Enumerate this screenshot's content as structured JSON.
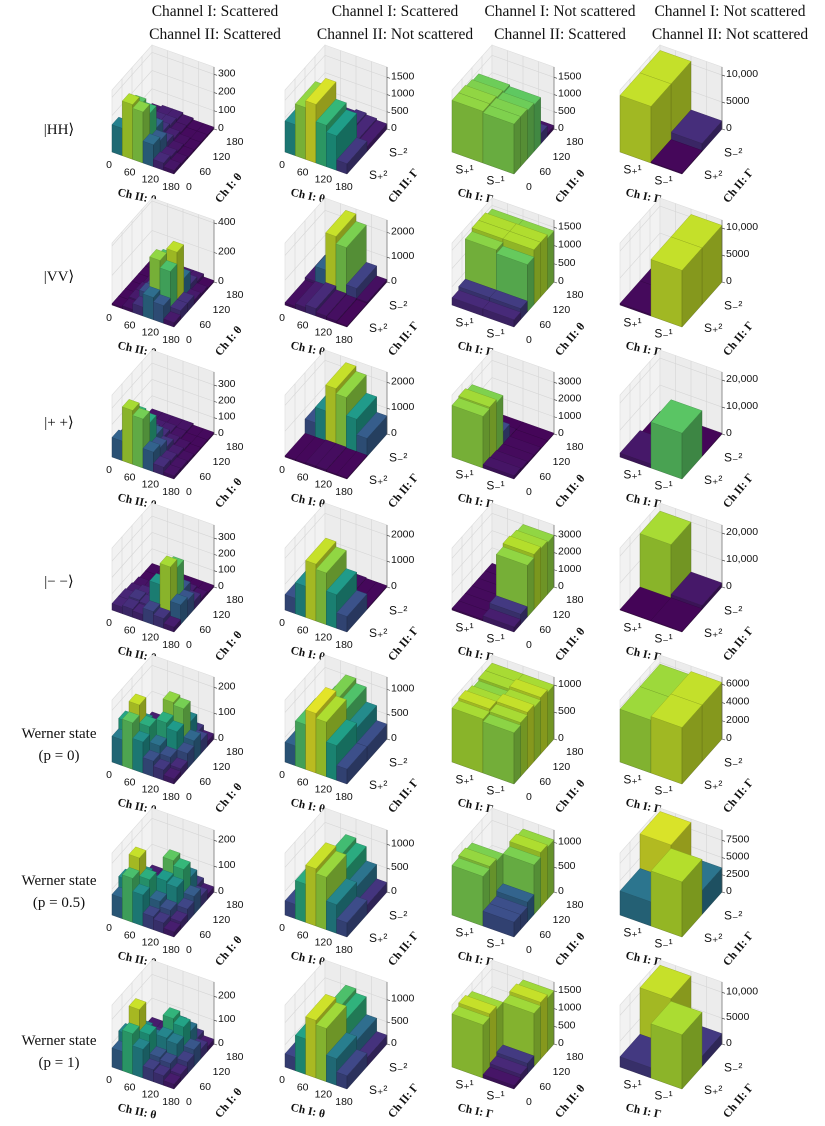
{
  "columns": [
    {
      "line1": "Channel I: Scattered",
      "line2": "Channel II: Scattered"
    },
    {
      "line1": "Channel I: Scattered",
      "line2": "Channel II: Not scattered"
    },
    {
      "line1": "Channel I: Not scattered",
      "line2": "Channel II: Scattered"
    },
    {
      "line1": "Channel I: Not scattered",
      "line2": "Channel II: Not scattered"
    }
  ],
  "rows": [
    {
      "line1": "|HH⟩",
      "line2": ""
    },
    {
      "line1": "|VV⟩",
      "line2": ""
    },
    {
      "line1": "|+ +⟩",
      "line2": ""
    },
    {
      "line1": "|− −⟩",
      "line2": ""
    },
    {
      "line1": "Werner state",
      "line2": "(p = 0)"
    },
    {
      "line1": "Werner state",
      "line2": "(p = 0.5)"
    },
    {
      "line1": "Werner state",
      "line2": "(p = 1)"
    }
  ],
  "axes": {
    "col0": {
      "x_label": "Ch II: θ",
      "y_label": "Ch I: θ",
      "x_ticks": [
        "0",
        "60",
        "120",
        "180"
      ],
      "y_ticks": [
        "0",
        "60",
        "120",
        "180"
      ],
      "x_type": "theta",
      "y_type": "theta"
    },
    "col1": {
      "x_label": "Ch I: θ",
      "y_label": "Ch II: Γ",
      "x_ticks": [
        "0",
        "60",
        "120",
        "180"
      ],
      "y_ticks": [
        "S₊²",
        "S₋²"
      ],
      "x_type": "theta",
      "y_type": "category"
    },
    "col2": {
      "x_label": "Ch I: Γ",
      "y_label": "Ch II: θ",
      "x_ticks": [
        "S₊¹",
        "S₋¹"
      ],
      "y_ticks": [
        "0",
        "60",
        "120",
        "180"
      ],
      "x_type": "category",
      "y_type": "theta"
    },
    "col3": {
      "x_label": "Ch I: Γ",
      "y_label": "Ch II: Γ",
      "x_ticks": [
        "S₊¹",
        "S₋¹"
      ],
      "y_ticks": [
        "S₊²",
        "S₋²"
      ],
      "x_type": "category",
      "y_type": "category"
    }
  },
  "chart_data": [
    {
      "type": "bar3d",
      "row": 0,
      "col": 0,
      "z_ticks": [
        "0",
        "100",
        "200",
        "300"
      ],
      "zlim": [
        0,
        340
      ],
      "values": [
        [
          150,
          120,
          60,
          30,
          20,
          20
        ],
        [
          300,
          250,
          120,
          60,
          40,
          30
        ],
        [
          280,
          230,
          110,
          50,
          40,
          30
        ],
        [
          120,
          100,
          50,
          30,
          20,
          20
        ],
        [
          40,
          30,
          20,
          15,
          10,
          10
        ],
        [
          20,
          15,
          10,
          10,
          10,
          10
        ]
      ]
    },
    {
      "type": "bar3d",
      "row": 0,
      "col": 1,
      "z_ticks": [
        "0",
        "500",
        "1000",
        "1500"
      ],
      "zlim": [
        0,
        1800
      ],
      "values": [
        [
          900,
          100
        ],
        [
          1500,
          150
        ],
        [
          1700,
          200
        ],
        [
          1200,
          250
        ],
        [
          1000,
          200
        ],
        [
          300,
          150
        ]
      ]
    },
    {
      "type": "bar3d",
      "row": 0,
      "col": 2,
      "z_ticks": [
        "0",
        "500",
        "1000",
        "1500"
      ],
      "zlim": [
        0,
        1800
      ],
      "values": [
        [
          1500,
          1500,
          1450,
          1400,
          300,
          100
        ],
        [
          1450,
          1450,
          1400,
          1350,
          300,
          100
        ]
      ]
    },
    {
      "type": "bar3d",
      "row": 0,
      "col": 3,
      "z_ticks": [
        "0",
        "5000",
        "10,000"
      ],
      "zlim": [
        0,
        11500
      ],
      "values": [
        [
          10500,
          10500
        ],
        [
          200,
          1500
        ]
      ]
    },
    {
      "type": "bar3d",
      "row": 1,
      "col": 0,
      "z_ticks": [
        "0",
        "200",
        "400"
      ],
      "zlim": [
        0,
        420
      ],
      "values": [
        [
          10,
          10,
          10,
          10,
          10,
          10
        ],
        [
          20,
          30,
          30,
          20,
          10,
          10
        ],
        [
          60,
          100,
          90,
          50,
          30,
          20
        ],
        [
          150,
          350,
          300,
          120,
          60,
          30
        ],
        [
          120,
          300,
          380,
          150,
          60,
          30
        ],
        [
          30,
          60,
          60,
          30,
          20,
          10
        ]
      ]
    },
    {
      "type": "bar3d",
      "row": 1,
      "col": 1,
      "z_ticks": [
        "0",
        "1000",
        "2000"
      ],
      "zlim": [
        0,
        2500
      ],
      "values": [
        [
          100,
          200
        ],
        [
          200,
          800
        ],
        [
          300,
          2300
        ],
        [
          150,
          2000
        ],
        [
          100,
          500
        ],
        [
          50,
          100
        ]
      ]
    },
    {
      "type": "bar3d",
      "row": 1,
      "col": 2,
      "z_ticks": [
        "0",
        "500",
        "1000",
        "1500"
      ],
      "zlim": [
        0,
        1700
      ],
      "values": [
        [
          200,
          300,
          1400,
          1500,
          1500,
          1400
        ],
        [
          200,
          300,
          1300,
          1500,
          1500,
          1400
        ]
      ]
    },
    {
      "type": "bar3d",
      "row": 1,
      "col": 3,
      "z_ticks": [
        "0",
        "5000",
        "10,000"
      ],
      "zlim": [
        0,
        11500
      ],
      "values": [
        [
          300,
          300
        ],
        [
          10500,
          10500
        ]
      ]
    },
    {
      "type": "bar3d",
      "row": 2,
      "col": 0,
      "z_ticks": [
        "0",
        "100",
        "200",
        "300"
      ],
      "zlim": [
        0,
        380
      ],
      "values": [
        [
          120,
          100,
          60,
          30,
          20,
          20
        ],
        [
          330,
          250,
          120,
          60,
          30,
          20
        ],
        [
          300,
          230,
          110,
          50,
          30,
          20
        ],
        [
          120,
          100,
          60,
          30,
          20,
          20
        ],
        [
          50,
          40,
          30,
          20,
          10,
          10
        ],
        [
          20,
          20,
          15,
          10,
          10,
          10
        ]
      ]
    },
    {
      "type": "bar3d",
      "row": 2,
      "col": 1,
      "z_ticks": [
        "0",
        "1000",
        "2000"
      ],
      "zlim": [
        0,
        2400
      ],
      "values": [
        [
          50,
          600
        ],
        [
          50,
          1200
        ],
        [
          80,
          2200
        ],
        [
          80,
          2000
        ],
        [
          50,
          1300
        ],
        [
          50,
          700
        ]
      ]
    },
    {
      "type": "bar3d",
      "row": 2,
      "col": 2,
      "z_ticks": [
        "0",
        "1000",
        "2000",
        "3000"
      ],
      "zlim": [
        0,
        3600
      ],
      "values": [
        [
          3000,
          3100,
          2900,
          800,
          100,
          50
        ],
        [
          200,
          150,
          100,
          100,
          50,
          50
        ]
      ]
    },
    {
      "type": "bar3d",
      "row": 2,
      "col": 3,
      "z_ticks": [
        "0",
        "10,000",
        "20,000"
      ],
      "zlim": [
        0,
        23000
      ],
      "values": [
        [
          1500,
          200
        ],
        [
          17000,
          300
        ]
      ]
    },
    {
      "type": "bar3d",
      "row": 3,
      "col": 0,
      "z_ticks": [
        "0",
        "100",
        "200",
        "300"
      ],
      "zlim": [
        0,
        380
      ],
      "values": [
        [
          40,
          40,
          30,
          20,
          10,
          10
        ],
        [
          50,
          60,
          40,
          20,
          10,
          10
        ],
        [
          40,
          50,
          40,
          20,
          10,
          10
        ],
        [
          80,
          200,
          150,
          60,
          20,
          10
        ],
        [
          60,
          330,
          280,
          100,
          30,
          10
        ],
        [
          30,
          120,
          100,
          50,
          20,
          10
        ]
      ]
    },
    {
      "type": "bar3d",
      "row": 3,
      "col": 1,
      "z_ticks": [
        "0",
        "1000",
        "2000"
      ],
      "zlim": [
        0,
        2400
      ],
      "values": [
        [
          600,
          50
        ],
        [
          1200,
          50
        ],
        [
          2200,
          80
        ],
        [
          2000,
          80
        ],
        [
          1300,
          50
        ],
        [
          600,
          50
        ]
      ]
    },
    {
      "type": "bar3d",
      "row": 3,
      "col": 2,
      "z_ticks": [
        "0",
        "1000",
        "2000",
        "3000"
      ],
      "zlim": [
        0,
        3600
      ],
      "values": [
        [
          100,
          100,
          100,
          100,
          100,
          100
        ],
        [
          300,
          600,
          3000,
          3200,
          3100,
          3000
        ]
      ]
    },
    {
      "type": "bar3d",
      "row": 3,
      "col": 3,
      "z_ticks": [
        "0",
        "10,000",
        "20,000"
      ],
      "zlim": [
        0,
        23000
      ],
      "values": [
        [
          200,
          20000
        ],
        [
          300,
          1500
        ]
      ]
    },
    {
      "type": "bar3d",
      "row": 4,
      "col": 0,
      "z_ticks": [
        "0",
        "100",
        "200"
      ],
      "zlim": [
        0,
        240
      ],
      "values": [
        [
          100,
          140,
          80,
          40,
          20,
          20
        ],
        [
          180,
          220,
          120,
          60,
          30,
          20
        ],
        [
          120,
          150,
          100,
          50,
          30,
          20
        ],
        [
          60,
          90,
          150,
          200,
          120,
          40
        ],
        [
          40,
          60,
          130,
          190,
          110,
          40
        ],
        [
          20,
          30,
          60,
          80,
          50,
          20
        ]
      ]
    },
    {
      "type": "bar3d",
      "row": 4,
      "col": 1,
      "z_ticks": [
        "0",
        "500",
        "1000"
      ],
      "zlim": [
        0,
        1250
      ],
      "values": [
        [
          400,
          300
        ],
        [
          900,
          700
        ],
        [
          1200,
          1000
        ],
        [
          1100,
          900
        ],
        [
          700,
          600
        ],
        [
          300,
          300
        ]
      ]
    },
    {
      "type": "bar3d",
      "row": 4,
      "col": 2,
      "z_ticks": [
        "0",
        "500",
        "1000"
      ],
      "zlim": [
        0,
        1150
      ],
      "values": [
        [
          1000,
          1050,
          1000,
          950,
          1000,
          1000
        ],
        [
          950,
          1000,
          1050,
          1000,
          1050,
          1000
        ]
      ]
    },
    {
      "type": "bar3d",
      "row": 4,
      "col": 3,
      "z_ticks": [
        "0",
        "2000",
        "4000",
        "6000"
      ],
      "zlim": [
        0,
        6800
      ],
      "values": [
        [
          5800,
          5800
        ],
        [
          6200,
          6200
        ]
      ]
    },
    {
      "type": "bar3d",
      "row": 5,
      "col": 0,
      "z_ticks": [
        "0",
        "100",
        "200"
      ],
      "zlim": [
        0,
        240
      ],
      "values": [
        [
          80,
          120,
          80,
          40,
          20,
          20
        ],
        [
          170,
          220,
          120,
          60,
          30,
          20
        ],
        [
          120,
          150,
          100,
          50,
          30,
          20
        ],
        [
          50,
          80,
          130,
          180,
          110,
          40
        ],
        [
          40,
          60,
          120,
          160,
          100,
          40
        ],
        [
          20,
          30,
          50,
          70,
          40,
          20
        ]
      ]
    },
    {
      "type": "bar3d",
      "row": 5,
      "col": 1,
      "z_ticks": [
        "0",
        "500",
        "1000"
      ],
      "zlim": [
        0,
        1300
      ],
      "values": [
        [
          300,
          200
        ],
        [
          800,
          500
        ],
        [
          1200,
          900
        ],
        [
          1100,
          800
        ],
        [
          600,
          500
        ],
        [
          300,
          200
        ]
      ]
    },
    {
      "type": "bar3d",
      "row": 5,
      "col": 2,
      "z_ticks": [
        "0",
        "500",
        "1000"
      ],
      "zlim": [
        0,
        1250
      ],
      "values": [
        [
          1000,
          1050,
          1000,
          300,
          200,
          100
        ],
        [
          300,
          300,
          400,
          1000,
          1100,
          1050
        ]
      ]
    },
    {
      "type": "bar3d",
      "row": 5,
      "col": 3,
      "z_ticks": [
        "0",
        "2500",
        "5000",
        "7500"
      ],
      "zlim": [
        0,
        9000
      ],
      "values": [
        [
          3500,
          8500
        ],
        [
          8000,
          3500
        ]
      ]
    },
    {
      "type": "bar3d",
      "row": 6,
      "col": 0,
      "z_ticks": [
        "0",
        "100",
        "200"
      ],
      "zlim": [
        0,
        260
      ],
      "values": [
        [
          80,
          120,
          80,
          40,
          20,
          20
        ],
        [
          170,
          240,
          120,
          60,
          30,
          20
        ],
        [
          120,
          150,
          100,
          50,
          30,
          20
        ],
        [
          50,
          70,
          120,
          170,
          110,
          40
        ],
        [
          40,
          60,
          110,
          150,
          100,
          40
        ],
        [
          20,
          30,
          50,
          70,
          40,
          20
        ]
      ]
    },
    {
      "type": "bar3d",
      "row": 6,
      "col": 1,
      "z_ticks": [
        "0",
        "500",
        "1000"
      ],
      "zlim": [
        0,
        1400
      ],
      "values": [
        [
          300,
          200
        ],
        [
          800,
          500
        ],
        [
          1300,
          1000
        ],
        [
          1200,
          900
        ],
        [
          600,
          500
        ],
        [
          300,
          200
        ]
      ]
    },
    {
      "type": "bar3d",
      "row": 6,
      "col": 2,
      "z_ticks": [
        "0",
        "500",
        "1000",
        "1500"
      ],
      "zlim": [
        0,
        1750
      ],
      "values": [
        [
          1500,
          1600,
          1500,
          200,
          100,
          100
        ],
        [
          100,
          200,
          300,
          1500,
          1600,
          1500
        ]
      ]
    },
    {
      "type": "bar3d",
      "row": 6,
      "col": 3,
      "z_ticks": [
        "0",
        "5000",
        "10,000"
      ],
      "zlim": [
        0,
        12000
      ],
      "values": [
        [
          2000,
          11000
        ],
        [
          10500,
          2000
        ]
      ]
    }
  ]
}
